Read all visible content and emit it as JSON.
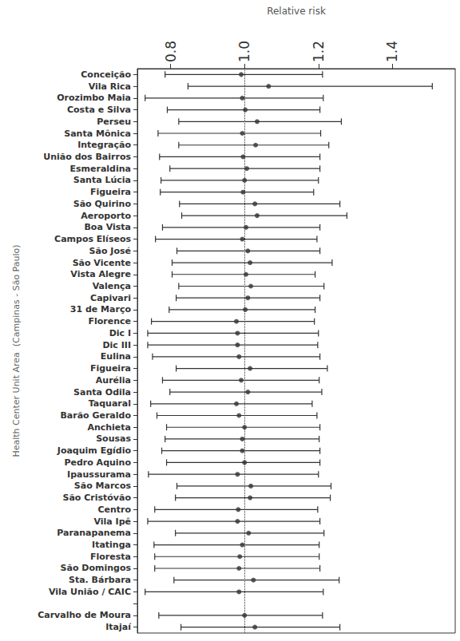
{
  "chart_data": {
    "type": "forest",
    "orientation": "horizontal",
    "x_label": "Relative risk",
    "y_label": "Health Center Unit Area  (Campinas - São Paulo)",
    "color": "#333333",
    "marker": "circle",
    "grid": false,
    "reference_line": 1.0,
    "xlim": [
      0.71,
      1.57
    ],
    "xticks": [
      0.8,
      {
        "value": 1.0,
        "label": "1.0"
      },
      1.2,
      1.4
    ],
    "categories": [
      "Conceição",
      "Vila Rica",
      "Orozimbo Maia",
      "Costa e Silva",
      "Perseu",
      "Santa Mônica",
      "Integração",
      "União dos Bairros",
      "Esmeraldina",
      "Santa Lúcia",
      "Figueira",
      "São Quirino",
      "Aeroporto",
      "Boa Vista",
      "Campos Elíseos",
      "São José",
      "São Vicente",
      "Vista Alegre",
      "Valença",
      "Capivari",
      "31 de Março",
      "Florence",
      "Dic I",
      "Dic III",
      "Eulina",
      "Figueira",
      "Aurélia",
      "Santa Odila",
      "Taquaral",
      "Barão Geraldo",
      "Anchieta",
      "Sousas",
      "Joaquim Egídio",
      "Pedro Aquino",
      "Ipaussurama",
      "São Marcos",
      "São Cristóvão",
      "Centro",
      "Vila Ipê",
      "Paranapanema",
      "Itatinga",
      "Floresta",
      "São Domingos",
      "Sta. Bárbara",
      "Vila União / CAIC",
      null,
      "Carvalho de Moura",
      "Itajaí"
    ],
    "values": [
      0.991,
      1.065,
      0.994,
      1.002,
      1.034,
      0.994,
      1.03,
      0.996,
      1.006,
      1.0,
      0.996,
      1.028,
      1.034,
      1.004,
      0.994,
      1.009,
      1.015,
      1.004,
      1.017,
      1.009,
      1.002,
      0.978,
      0.981,
      0.981,
      0.985,
      1.015,
      0.991,
      1.009,
      0.978,
      0.985,
      1.0,
      0.994,
      0.994,
      1.0,
      0.981,
      1.017,
      1.015,
      0.983,
      0.981,
      1.011,
      0.994,
      0.987,
      0.985,
      1.024,
      0.985,
      null,
      1.0,
      1.028
    ],
    "lower": [
      0.785,
      0.847,
      0.731,
      0.791,
      0.822,
      0.766,
      0.822,
      0.77,
      0.798,
      0.774,
      0.772,
      0.824,
      0.83,
      0.778,
      0.759,
      0.817,
      0.804,
      0.804,
      0.822,
      0.815,
      0.796,
      0.748,
      0.738,
      0.738,
      0.751,
      0.815,
      0.778,
      0.798,
      0.746,
      0.763,
      0.789,
      0.785,
      0.776,
      0.789,
      0.74,
      0.817,
      0.813,
      0.757,
      0.738,
      0.813,
      0.755,
      0.757,
      0.757,
      0.809,
      0.731,
      null,
      0.768,
      0.828
    ],
    "upper": [
      1.211,
      1.508,
      1.213,
      1.204,
      1.262,
      1.206,
      1.228,
      1.204,
      1.204,
      1.2,
      1.187,
      1.258,
      1.277,
      1.204,
      1.196,
      1.204,
      1.237,
      1.191,
      1.215,
      1.204,
      1.191,
      1.189,
      1.2,
      1.198,
      1.204,
      1.224,
      1.202,
      1.209,
      1.183,
      1.196,
      1.204,
      1.202,
      1.204,
      1.204,
      1.2,
      1.234,
      1.232,
      1.198,
      1.204,
      1.215,
      1.202,
      1.202,
      1.204,
      1.256,
      1.213,
      null,
      1.211,
      1.258
    ]
  }
}
